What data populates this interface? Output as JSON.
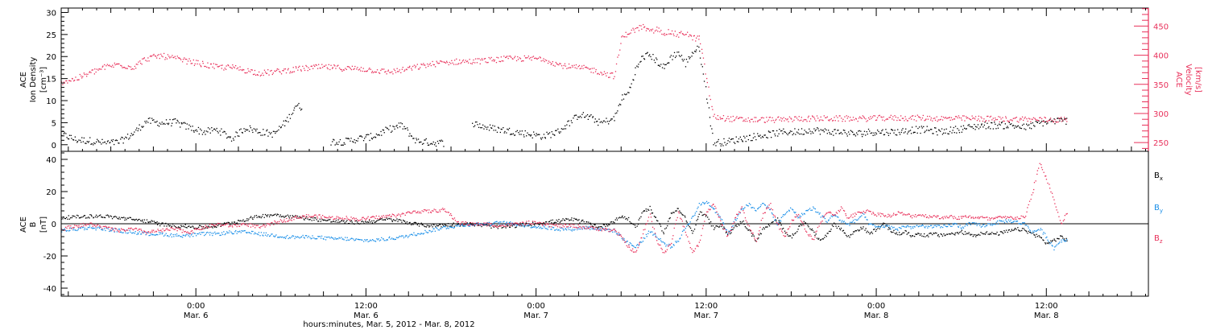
{
  "chart_data": [
    {
      "type": "scatter",
      "panel": "plasma",
      "x_unit": "hours since Mar. 5, 2012 00:00",
      "xlim": [
        14.5,
        91.2
      ],
      "y_left": {
        "label_lines": [
          "ACE",
          "Ion Density",
          "[cm⁻³]"
        ],
        "ylim": [
          -1.5,
          31
        ],
        "ticks": [
          0,
          5,
          10,
          15,
          20,
          25,
          30
        ],
        "tick_labels": [
          "0",
          "5",
          "10",
          "15",
          "20",
          "25",
          "30"
        ]
      },
      "y_right": {
        "label_lines": [
          "ACE",
          "Velocity",
          "[km/s]"
        ],
        "ylim": [
          235,
          481
        ],
        "ticks": [
          250,
          300,
          350,
          400,
          450
        ],
        "tick_labels": [
          "250",
          "300",
          "350",
          "400",
          "450"
        ],
        "color": "#e8305a"
      },
      "series": [
        {
          "axis": "left",
          "color": "#000000",
          "x": [
            14.5,
            15.5,
            16.5,
            17.5,
            18.5,
            19.5,
            20.5,
            21.5,
            22.5,
            23.5,
            24.5,
            25.5,
            26.5,
            27.5,
            28.5,
            29.5,
            30.5,
            31.0,
            31.5,
            32.5,
            33.5,
            34.5,
            35.5,
            36.5,
            37.5,
            38.5,
            39.5,
            40.5,
            41.5,
            42.5,
            43.5,
            44.5,
            45.5,
            46.5,
            47.5,
            48.5,
            49.5,
            50.5,
            51.0,
            51.5,
            52.0,
            52.5,
            53.0,
            53.5,
            54.0,
            54.5,
            55.0,
            55.5,
            56.0,
            56.5,
            57.0,
            57.5,
            58.0,
            58.5,
            59.0,
            59.5,
            60.5,
            61.5,
            62.5,
            63.5,
            64.5,
            65.5,
            66.5,
            67.5,
            68.5,
            69.5,
            70.5,
            71.5,
            72.5,
            73.5,
            74.5,
            75.5,
            76.5,
            77.5,
            78.5,
            79.5,
            80.5,
            81.5,
            82.5,
            83.5,
            84.5,
            85.5
          ],
          "y": [
            2.5,
            1.2,
            1.0,
            0.5,
            0.6,
            2.5,
            5.5,
            5.0,
            5.2,
            4.0,
            3.0,
            3.5,
            1.5,
            4.0,
            3.0,
            2.5,
            6.0,
            9.0,
            8.5,
            null,
            0.8,
            0.8,
            1.5,
            2.0,
            3.5,
            4.5,
            1.0,
            0.6,
            0.5,
            null,
            5.0,
            4.0,
            3.5,
            3.0,
            2.5,
            2.0,
            3.0,
            5.5,
            7.0,
            6.5,
            6.0,
            5.0,
            5.5,
            6.0,
            10.5,
            12.0,
            17.0,
            20.0,
            20.5,
            19.0,
            17.5,
            20.0,
            21.0,
            18.5,
            21.0,
            22.0,
            0.5,
            0.8,
            1.5,
            2.0,
            2.5,
            3.0,
            3.0,
            3.5,
            3.0,
            3.0,
            2.5,
            3.0,
            3.0,
            3.0,
            3.5,
            3.5,
            3.0,
            3.5,
            4.0,
            4.5,
            4.5,
            4.5,
            4.0,
            5.0,
            5.5,
            5.5
          ]
        },
        {
          "axis": "right",
          "color": "#e8305a",
          "x": [
            14.5,
            15.5,
            16.5,
            17.5,
            18.5,
            19.5,
            20.5,
            21.5,
            22.5,
            23.5,
            24.5,
            25.5,
            26.5,
            27.5,
            28.5,
            29.5,
            30.5,
            31.5,
            32.5,
            33.5,
            34.5,
            35.5,
            36.5,
            37.5,
            38.5,
            39.5,
            40.5,
            41.5,
            42.5,
            43.5,
            44.5,
            45.5,
            46.5,
            47.5,
            48.5,
            49.5,
            50.5,
            51.5,
            52.5,
            53.0,
            53.5,
            54.0,
            54.5,
            55.0,
            55.5,
            56.0,
            56.5,
            57.0,
            57.5,
            58.0,
            58.5,
            59.0,
            59.5,
            60.5,
            61.5,
            62.5,
            63.5,
            64.5,
            65.5,
            66.5,
            67.5,
            68.5,
            69.5,
            70.5,
            71.5,
            72.5,
            73.5,
            74.5,
            75.5,
            76.5,
            77.5,
            78.5,
            79.5,
            80.5,
            81.5,
            82.5,
            83.5,
            84.5,
            85.5
          ],
          "y": [
            355,
            360,
            370,
            380,
            385,
            380,
            395,
            400,
            395,
            390,
            385,
            380,
            380,
            375,
            370,
            372,
            375,
            378,
            380,
            380,
            378,
            378,
            375,
            372,
            375,
            380,
            385,
            388,
            390,
            390,
            392,
            394,
            395,
            395,
            395,
            385,
            380,
            378,
            372,
            368,
            365,
            430,
            440,
            445,
            450,
            440,
            445,
            440,
            440,
            435,
            440,
            430,
            430,
            295,
            292,
            290,
            290,
            290,
            290,
            292,
            292,
            292,
            292,
            292,
            292,
            293,
            293,
            293,
            293,
            292,
            292,
            292,
            292,
            291,
            291,
            291,
            290,
            290,
            290
          ]
        }
      ]
    },
    {
      "type": "scatter",
      "panel": "magnetic field",
      "x_unit": "hours since Mar. 5, 2012 00:00",
      "xlim": [
        14.5,
        91.2
      ],
      "y_left": {
        "label_lines": [
          "ACE",
          "B",
          "[nT]"
        ],
        "ylim": [
          -45,
          45
        ],
        "ticks": [
          -40,
          -20,
          0,
          20,
          40
        ],
        "tick_labels": [
          "-40",
          "-20",
          "0",
          "20",
          "40"
        ]
      },
      "series": [
        {
          "name": "Bx",
          "color": "#000000",
          "x": [
            14.5,
            15.5,
            16.5,
            17.5,
            18.5,
            19.5,
            20.5,
            21.5,
            22.5,
            23.5,
            24.5,
            25.5,
            26.5,
            27.5,
            28.5,
            29.5,
            30.5,
            31.5,
            32.5,
            33.5,
            34.5,
            35.5,
            36.5,
            37.5,
            38.5,
            39.5,
            40.5,
            41.5,
            42.5,
            43.5,
            44.5,
            45.5,
            46.5,
            47.5,
            48.5,
            49.5,
            50.5,
            51.5,
            52.5,
            53.5,
            54.0,
            54.5,
            55.0,
            55.5,
            56.0,
            56.5,
            57.0,
            57.5,
            58.0,
            58.5,
            59.0,
            59.5,
            60.0,
            60.5,
            61.0,
            61.5,
            62.0,
            62.5,
            63.0,
            63.5,
            64.0,
            64.5,
            65.0,
            65.5,
            66.0,
            66.5,
            67.0,
            67.5,
            68.0,
            68.5,
            69.0,
            69.5,
            70.0,
            70.5,
            71.0,
            71.5,
            72.0,
            72.5,
            73.0,
            73.5,
            74.0,
            74.5,
            75.0,
            75.5,
            76.0,
            76.5,
            77.0,
            77.5,
            78.0,
            78.5,
            79.0,
            79.5,
            80.0,
            80.5,
            81.0,
            81.5,
            82.0,
            82.5,
            83.0,
            83.5,
            84.0,
            84.5,
            85.0,
            85.5
          ],
          "y": [
            4,
            4.5,
            5,
            5,
            4,
            3,
            2,
            0,
            -1,
            -1.5,
            -2,
            -1,
            1,
            3,
            5,
            6,
            5,
            4,
            3,
            2,
            1.5,
            1,
            2,
            3,
            2,
            0,
            -1,
            -0.5,
            0,
            0,
            -1,
            -2,
            -1,
            0,
            1,
            2,
            3,
            1,
            -2,
            2,
            5,
            3,
            -2,
            8,
            10,
            2,
            -5,
            6,
            10,
            4,
            -6,
            7,
            5,
            -3,
            0,
            -6,
            -2,
            2,
            -4,
            -10,
            -3,
            0,
            3,
            -4,
            -8,
            -2,
            2,
            -5,
            -10,
            -6,
            0,
            -3,
            -8,
            -4,
            -2,
            -6,
            -3,
            0,
            -4,
            -6,
            -5,
            -7,
            -6,
            -7,
            -6,
            -7,
            -6,
            -6,
            -5,
            -6,
            -7,
            -5,
            -6,
            -6,
            -5,
            -4,
            -3,
            -4,
            -6,
            -8,
            -12,
            -10,
            -8,
            -10
          ]
        },
        {
          "name": "By",
          "color": "#1a8fe8",
          "x": [
            14.5,
            15.5,
            16.5,
            17.5,
            18.5,
            19.5,
            20.5,
            21.5,
            22.5,
            23.5,
            24.5,
            25.5,
            26.5,
            27.5,
            28.5,
            29.5,
            30.5,
            31.5,
            32.5,
            33.5,
            34.5,
            35.5,
            36.5,
            37.5,
            38.5,
            39.5,
            40.5,
            41.5,
            42.5,
            43.5,
            44.5,
            45.5,
            46.5,
            47.5,
            48.5,
            49.5,
            50.5,
            51.5,
            52.5,
            53.5,
            54.0,
            54.5,
            55.0,
            55.5,
            56.0,
            56.5,
            57.0,
            57.5,
            58.0,
            58.5,
            59.0,
            59.5,
            60.0,
            60.5,
            61.0,
            61.5,
            62.0,
            62.5,
            63.0,
            63.5,
            64.0,
            64.5,
            65.0,
            65.5,
            66.0,
            66.5,
            67.0,
            67.5,
            68.0,
            68.5,
            69.0,
            69.5,
            70.0,
            70.5,
            71.0,
            71.5,
            72.0,
            72.5,
            73.0,
            73.5,
            74.0,
            74.5,
            75.0,
            75.5,
            76.0,
            76.5,
            77.0,
            77.5,
            78.0,
            78.5,
            79.0,
            79.5,
            80.0,
            80.5,
            81.0,
            81.5,
            82.0,
            82.5,
            83.0,
            83.5,
            84.0,
            84.5,
            85.0,
            85.5
          ],
          "y": [
            -4,
            -3,
            -2,
            -3,
            -4,
            -5,
            -6,
            -6,
            -7,
            -7,
            -6,
            -6,
            -5,
            -5,
            -6,
            -7,
            -8,
            -8,
            -8,
            -9,
            -9,
            -10,
            -10,
            -9,
            -8,
            -6,
            -4,
            -2,
            -1,
            0,
            0,
            1,
            0,
            -1,
            -2,
            -3,
            -3,
            -2,
            -3,
            -4,
            -8,
            -12,
            -14,
            -10,
            -4,
            -8,
            -12,
            -14,
            -10,
            -2,
            4,
            12,
            14,
            10,
            4,
            -6,
            2,
            10,
            12,
            8,
            14,
            8,
            0,
            6,
            10,
            4,
            8,
            10,
            6,
            2,
            6,
            2,
            0,
            2,
            6,
            0,
            -2,
            -1,
            -2,
            -3,
            -1,
            -2,
            -1,
            -2,
            -1,
            -2,
            -1,
            0,
            -2,
            0,
            0,
            -1,
            0,
            1,
            2,
            2,
            1,
            0,
            -5,
            -3,
            -8,
            -15,
            -10,
            -10
          ]
        },
        {
          "name": "Bz",
          "color": "#e8305a",
          "x": [
            14.5,
            15.5,
            16.5,
            17.5,
            18.5,
            19.5,
            20.5,
            21.5,
            22.5,
            23.5,
            24.5,
            25.5,
            26.5,
            27.5,
            28.5,
            29.5,
            30.5,
            31.5,
            32.5,
            33.5,
            34.5,
            35.5,
            36.5,
            37.5,
            38.5,
            39.5,
            40.5,
            41.5,
            42.5,
            43.5,
            44.5,
            45.5,
            46.5,
            47.5,
            48.5,
            49.5,
            50.5,
            51.5,
            52.5,
            53.5,
            54.0,
            54.5,
            55.0,
            55.5,
            56.0,
            56.5,
            57.0,
            57.5,
            58.0,
            58.5,
            59.0,
            59.5,
            60.0,
            60.5,
            61.0,
            61.5,
            62.0,
            62.5,
            63.0,
            63.5,
            64.0,
            64.5,
            65.0,
            65.5,
            66.0,
            66.5,
            67.0,
            67.5,
            68.0,
            68.5,
            69.0,
            69.5,
            70.0,
            70.5,
            71.0,
            71.5,
            72.0,
            72.5,
            73.0,
            73.5,
            74.0,
            74.5,
            75.0,
            75.5,
            76.0,
            76.5,
            77.0,
            77.5,
            78.0,
            78.5,
            79.0,
            79.5,
            80.0,
            80.5,
            81.0,
            81.5,
            82.0,
            82.5,
            83.0,
            83.5,
            84.0,
            84.5,
            85.0,
            85.5
          ],
          "y": [
            -3,
            -1,
            0,
            -2,
            -4,
            -3,
            -5,
            -4,
            -3,
            -5,
            -2,
            0,
            -1,
            0,
            -2,
            1,
            3,
            5,
            5,
            4,
            4,
            3,
            4,
            5,
            6,
            8,
            8,
            9,
            1,
            0,
            0,
            -1,
            0,
            1,
            0,
            -1,
            -1,
            -2,
            -3,
            -4,
            -8,
            -14,
            -18,
            -6,
            6,
            -10,
            -18,
            -12,
            8,
            -4,
            -18,
            -12,
            8,
            12,
            2,
            -8,
            4,
            10,
            -2,
            -10,
            6,
            12,
            0,
            -8,
            2,
            6,
            -4,
            -10,
            0,
            8,
            6,
            10,
            4,
            6,
            8,
            8,
            6,
            6,
            5,
            7,
            6,
            5,
            6,
            5,
            5,
            4,
            5,
            4,
            4,
            5,
            4,
            4,
            3,
            4,
            4,
            4,
            4,
            5,
            20,
            38,
            28,
            15,
            0,
            8
          ]
        }
      ]
    }
  ],
  "x_axis": {
    "ticks": [
      {
        "hour": 24,
        "time": "0:00",
        "date": "Mar. 6"
      },
      {
        "hour": 36,
        "time": "12:00",
        "date": "Mar. 6"
      },
      {
        "hour": 48,
        "time": "0:00",
        "date": "Mar. 7"
      },
      {
        "hour": 60,
        "time": "12:00",
        "date": "Mar. 7"
      },
      {
        "hour": 72,
        "time": "0:00",
        "date": "Mar. 8"
      },
      {
        "hour": 84,
        "time": "12:00",
        "date": "Mar. 8"
      }
    ],
    "label": "hours:minutes, Mar. 5, 2012 - Mar. 8, 2012"
  },
  "legend": {
    "labels": [
      {
        "text": "B",
        "sub": "x",
        "color": "#000000"
      },
      {
        "text": "B",
        "sub": "y",
        "color": "#1a8fe8"
      },
      {
        "text": "B",
        "sub": "z",
        "color": "#e8305a"
      }
    ]
  }
}
